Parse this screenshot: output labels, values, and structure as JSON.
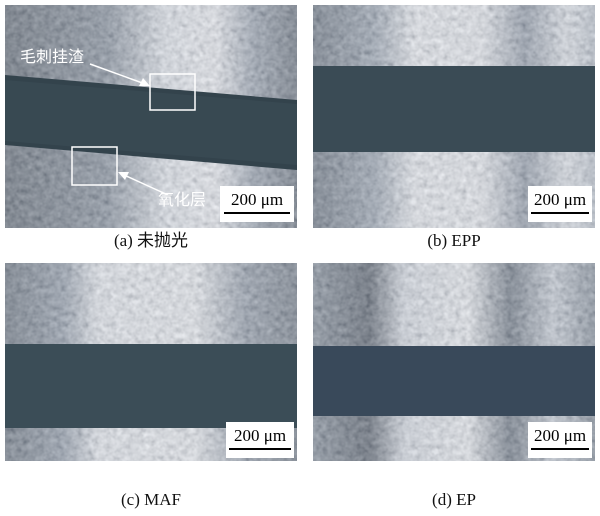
{
  "panels": [
    {
      "caption": "(a) 未抛光",
      "scale_bar": "200 μm",
      "annotations": [
        "毛刺挂渣",
        "氧化层"
      ]
    },
    {
      "caption": "(b) EPP",
      "scale_bar": "200 μm"
    },
    {
      "caption": "(c) MAF",
      "scale_bar": "200 μm"
    },
    {
      "caption": "(d) EP",
      "scale_bar": "200 μm"
    }
  ]
}
